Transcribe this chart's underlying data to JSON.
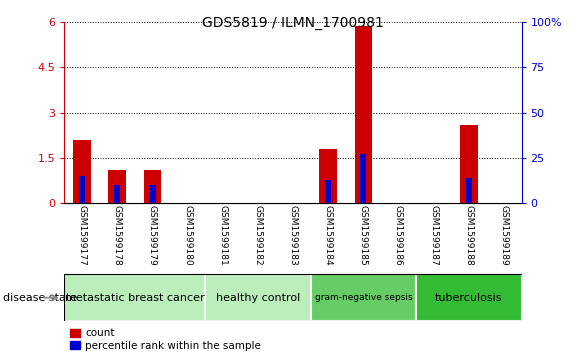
{
  "title": "GDS5819 / ILMN_1700981",
  "samples": [
    "GSM1599177",
    "GSM1599178",
    "GSM1599179",
    "GSM1599180",
    "GSM1599181",
    "GSM1599182",
    "GSM1599183",
    "GSM1599184",
    "GSM1599185",
    "GSM1599186",
    "GSM1599187",
    "GSM1599188",
    "GSM1599189"
  ],
  "count_values": [
    2.1,
    1.1,
    1.1,
    0.0,
    0.0,
    0.0,
    0.0,
    1.8,
    5.85,
    0.0,
    0.0,
    2.6,
    0.0
  ],
  "pct_percent": [
    15.0,
    10.0,
    10.0,
    0.0,
    0.0,
    0.0,
    0.0,
    13.0,
    27.0,
    0.0,
    0.0,
    14.0,
    0.0
  ],
  "ylim_left": [
    0,
    6
  ],
  "ylim_right": [
    0,
    100
  ],
  "yticks_left": [
    0,
    1.5,
    3.0,
    4.5,
    6.0
  ],
  "ytick_labels_left": [
    "0",
    "1.5",
    "3",
    "4.5",
    "6"
  ],
  "yticks_right": [
    0,
    25,
    50,
    75,
    100
  ],
  "ytick_labels_right": [
    "0",
    "25",
    "50",
    "75",
    "100%"
  ],
  "count_color": "#cc0000",
  "percentile_color": "#0000cc",
  "tick_area_color": "#c8c8c8",
  "left_yaxis_color": "#cc0000",
  "right_yaxis_color": "#0000cc",
  "groups": [
    {
      "label": "metastatic breast cancer",
      "start": 0,
      "end": 3,
      "color": "#bbeebb"
    },
    {
      "label": "healthy control",
      "start": 4,
      "end": 6,
      "color": "#bbeebb"
    },
    {
      "label": "gram-negative sepsis",
      "start": 7,
      "end": 9,
      "color": "#66cc66"
    },
    {
      "label": "tuberculosis",
      "start": 10,
      "end": 12,
      "color": "#33bb33"
    }
  ],
  "disease_state_label": "disease state",
  "legend_count": "count",
  "legend_pct": "percentile rank within the sample"
}
